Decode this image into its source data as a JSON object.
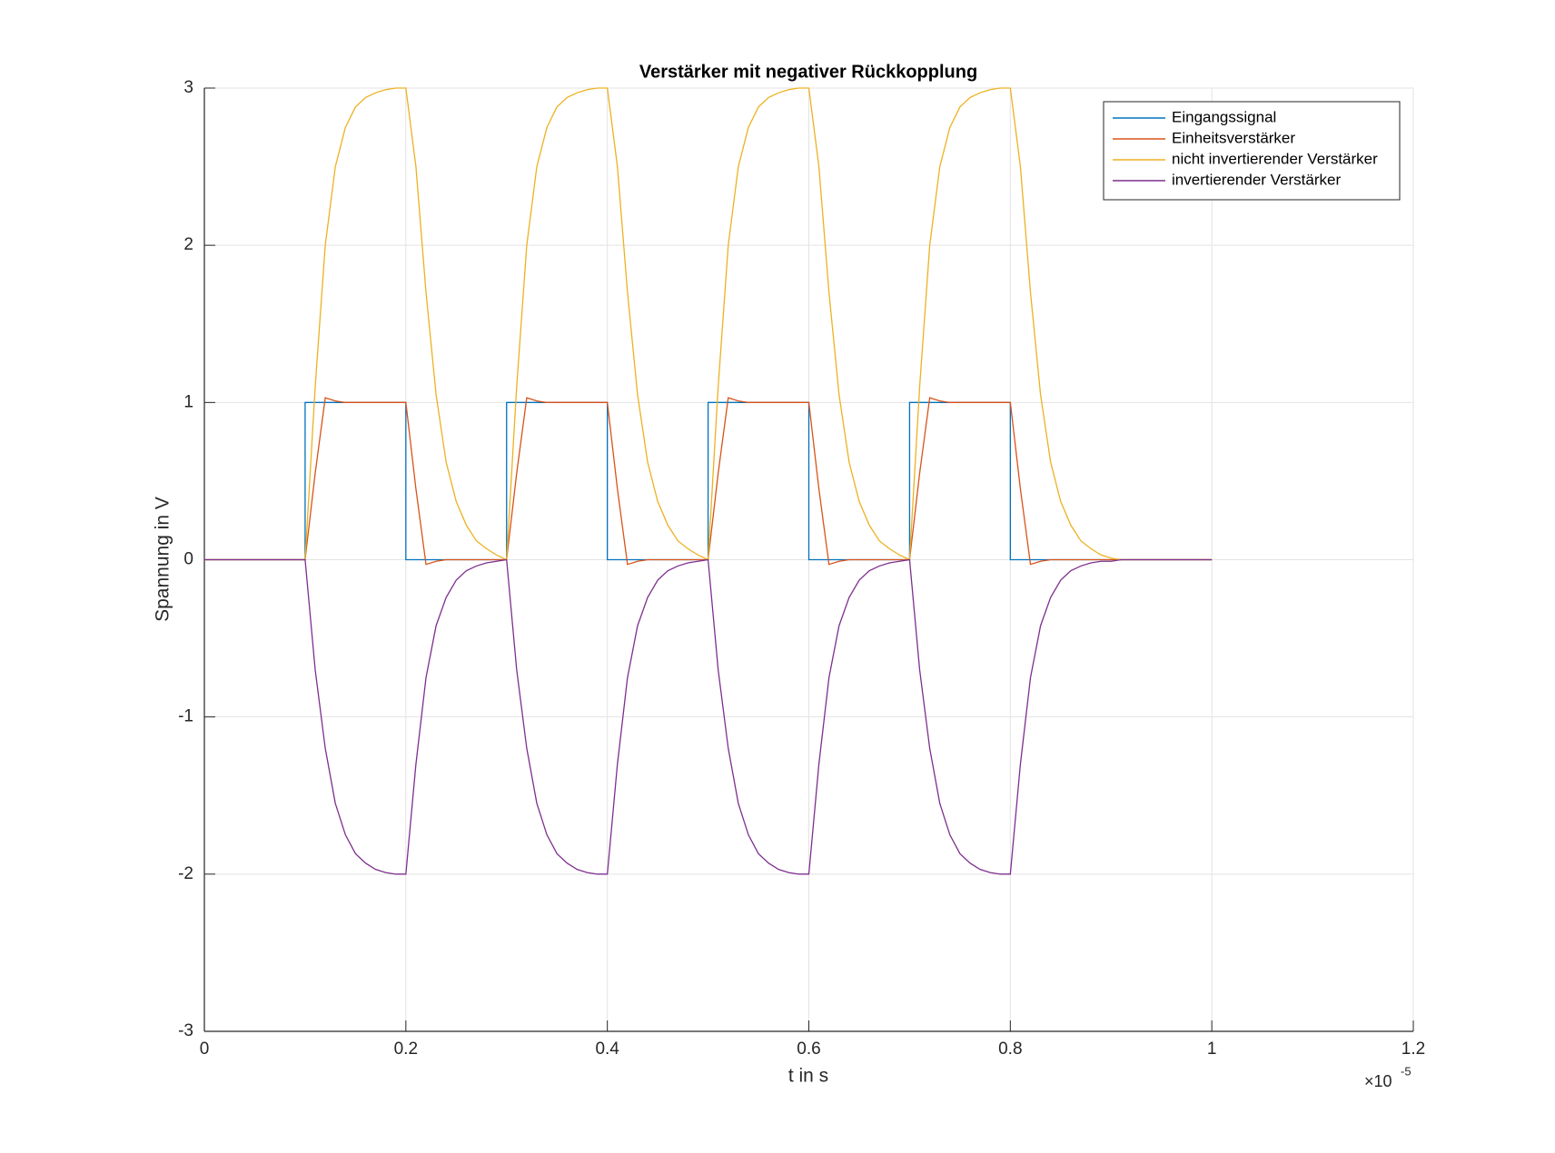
{
  "chart_data": {
    "type": "line",
    "title": "Verstärker mit negativer Rückkopplung",
    "x_label": "t in s",
    "y_label": "Spannung in V",
    "x_multiplier": {
      "base": "×10",
      "exponent": "-5"
    },
    "xlim": [
      0,
      1.2
    ],
    "ylim": [
      -3,
      3
    ],
    "xticks": [
      0,
      0.2,
      0.4,
      0.6,
      0.8,
      1,
      1.2
    ],
    "yticks": [
      -3,
      -2,
      -1,
      0,
      1,
      2,
      3
    ],
    "grid": true,
    "legend": "top-right",
    "x": [
      0,
      0.01,
      0.02,
      0.03,
      0.04,
      0.05,
      0.06,
      0.07,
      0.08,
      0.09,
      0.1,
      0.11,
      0.12,
      0.13,
      0.14,
      0.15,
      0.16,
      0.17,
      0.18,
      0.19,
      0.2,
      0.21,
      0.22,
      0.23,
      0.24,
      0.25,
      0.26,
      0.27,
      0.28,
      0.29,
      0.3,
      0.31,
      0.32,
      0.33,
      0.34,
      0.35,
      0.36,
      0.37,
      0.38,
      0.39,
      0.4,
      0.41,
      0.42,
      0.43,
      0.44,
      0.45,
      0.46,
      0.47,
      0.48,
      0.49,
      0.5,
      0.51,
      0.52,
      0.53,
      0.54,
      0.55,
      0.56,
      0.57,
      0.58,
      0.59,
      0.6,
      0.61,
      0.62,
      0.63,
      0.64,
      0.65,
      0.66,
      0.67,
      0.68,
      0.69,
      0.7,
      0.71,
      0.72,
      0.73,
      0.74,
      0.75,
      0.76,
      0.77,
      0.78,
      0.79,
      0.8,
      0.81,
      0.82,
      0.83,
      0.84,
      0.85,
      0.86,
      0.87,
      0.88,
      0.89,
      0.9,
      0.91,
      0.92,
      0.93,
      0.94,
      0.95,
      0.96,
      0.97,
      0.98,
      0.99,
      1
    ],
    "series": [
      {
        "name": "Eingangssignal",
        "color": "#0072BD",
        "x": [
          0,
          0.1,
          0.1,
          0.2,
          0.2,
          0.3,
          0.3,
          0.4,
          0.4,
          0.5,
          0.5,
          0.6,
          0.6,
          0.7,
          0.7,
          0.8,
          0.8,
          1
        ],
        "values": [
          0,
          0,
          1,
          1,
          0,
          0,
          1,
          1,
          0,
          0,
          1,
          1,
          0,
          0,
          1,
          1,
          0,
          0
        ]
      },
      {
        "name": "Einheitsverstärker",
        "color": "#D95319",
        "values": [
          0,
          0,
          0,
          0,
          0,
          0,
          0,
          0,
          0,
          0,
          0,
          0.55,
          1.03,
          1.01,
          1,
          1,
          1,
          1,
          1,
          1,
          1,
          0.45,
          -0.03,
          -0.01,
          0,
          0,
          0,
          0,
          0,
          0,
          0,
          0.55,
          1.03,
          1.01,
          1,
          1,
          1,
          1,
          1,
          1,
          1,
          0.45,
          -0.03,
          -0.01,
          0,
          0,
          0,
          0,
          0,
          0,
          0,
          0.55,
          1.03,
          1.01,
          1,
          1,
          1,
          1,
          1,
          1,
          1,
          0.45,
          -0.03,
          -0.01,
          0,
          0,
          0,
          0,
          0,
          0,
          0,
          0.55,
          1.03,
          1.01,
          1,
          1,
          1,
          1,
          1,
          1,
          1,
          0.45,
          -0.03,
          -0.01,
          0,
          0,
          0,
          0,
          0,
          0,
          0,
          0,
          0,
          0,
          0,
          0,
          0,
          0,
          0,
          0,
          0
        ]
      },
      {
        "name": "nicht invertierender Verstärker",
        "color": "#EDB120",
        "values": [
          0,
          0,
          0,
          0,
          0,
          0,
          0,
          0,
          0,
          0,
          0,
          1.1,
          2.0,
          2.5,
          2.75,
          2.88,
          2.94,
          2.97,
          2.99,
          3.0,
          3.0,
          2.5,
          1.7,
          1.05,
          0.62,
          0.37,
          0.22,
          0.12,
          0.07,
          0.03,
          0,
          1.1,
          2.0,
          2.5,
          2.75,
          2.88,
          2.94,
          2.97,
          2.99,
          3.0,
          3.0,
          2.5,
          1.7,
          1.05,
          0.62,
          0.37,
          0.22,
          0.12,
          0.07,
          0.03,
          0,
          1.1,
          2.0,
          2.5,
          2.75,
          2.88,
          2.94,
          2.97,
          2.99,
          3.0,
          3.0,
          2.5,
          1.7,
          1.05,
          0.62,
          0.37,
          0.22,
          0.12,
          0.07,
          0.03,
          0,
          1.1,
          2.0,
          2.5,
          2.75,
          2.88,
          2.94,
          2.97,
          2.99,
          3.0,
          3.0,
          2.5,
          1.7,
          1.05,
          0.62,
          0.37,
          0.22,
          0.12,
          0.07,
          0.03,
          0.01,
          0,
          0,
          0,
          0,
          0,
          0,
          0,
          0,
          0,
          0
        ]
      },
      {
        "name": "invertierender Verstärker",
        "color": "#7E2F8E",
        "values": [
          0,
          0,
          0,
          0,
          0,
          0,
          0,
          0,
          0,
          0,
          0,
          -0.7,
          -1.2,
          -1.55,
          -1.75,
          -1.87,
          -1.93,
          -1.97,
          -1.99,
          -2,
          -2,
          -1.3,
          -0.75,
          -0.42,
          -0.24,
          -0.13,
          -0.07,
          -0.04,
          -0.02,
          -0.01,
          0,
          -0.7,
          -1.2,
          -1.55,
          -1.75,
          -1.87,
          -1.93,
          -1.97,
          -1.99,
          -2,
          -2,
          -1.3,
          -0.75,
          -0.42,
          -0.24,
          -0.13,
          -0.07,
          -0.04,
          -0.02,
          -0.01,
          0,
          -0.7,
          -1.2,
          -1.55,
          -1.75,
          -1.87,
          -1.93,
          -1.97,
          -1.99,
          -2,
          -2,
          -1.3,
          -0.75,
          -0.42,
          -0.24,
          -0.13,
          -0.07,
          -0.04,
          -0.02,
          -0.01,
          0,
          -0.7,
          -1.2,
          -1.55,
          -1.75,
          -1.87,
          -1.93,
          -1.97,
          -1.99,
          -2,
          -2,
          -1.3,
          -0.75,
          -0.42,
          -0.24,
          -0.13,
          -0.07,
          -0.04,
          -0.02,
          -0.01,
          -0.01,
          0,
          0,
          0,
          0,
          0,
          0,
          0,
          0,
          0,
          0
        ]
      }
    ]
  }
}
